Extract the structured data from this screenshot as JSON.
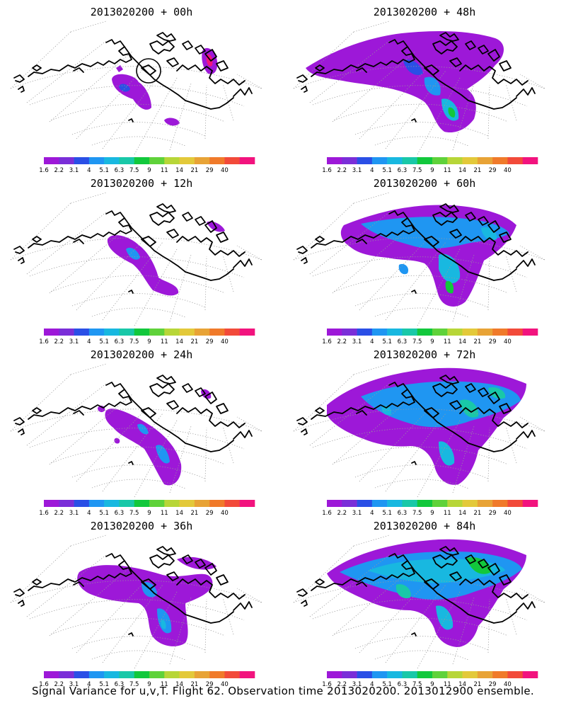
{
  "figure": {
    "caption": "Signal Variance for u,v,T. Flight 62. Observation time 2013020200. 2013012900 ensemble."
  },
  "colorbar": {
    "colors": [
      "#9d18d8",
      "#7a2ed8",
      "#2a4fe6",
      "#1f96f2",
      "#18b8e0",
      "#19c8a8",
      "#12c83c",
      "#5fd23a",
      "#b7d638",
      "#e3c93a",
      "#e8a336",
      "#f07a2a",
      "#f24a3a",
      "#f2137e"
    ],
    "tick_labels": [
      "1.6",
      "2.2",
      "3.1",
      "4",
      "5.1",
      "6.3",
      "7.5",
      "9",
      "11",
      "14",
      "21",
      "29",
      "40"
    ]
  },
  "panels": [
    {
      "title": "2013020200 + 00h",
      "lead_hours": 0,
      "max_level": "30",
      "circle_marker": true
    },
    {
      "title": "2013020200 + 48h",
      "lead_hours": 48,
      "max_level": "7.5"
    },
    {
      "title": "2013020200 + 12h",
      "lead_hours": 12,
      "max_level": "4"
    },
    {
      "title": "2013020200 + 60h",
      "lead_hours": 60,
      "max_level": "7.5"
    },
    {
      "title": "2013020200 + 24h",
      "lead_hours": 24,
      "max_level": "4"
    },
    {
      "title": "2013020200 + 72h",
      "lead_hours": 72,
      "max_level": "7.5"
    },
    {
      "title": "2013020200 + 36h",
      "lead_hours": 36,
      "max_level": "5.1"
    },
    {
      "title": "2013020200 + 84h",
      "lead_hours": 84,
      "max_level": "7.5"
    }
  ]
}
